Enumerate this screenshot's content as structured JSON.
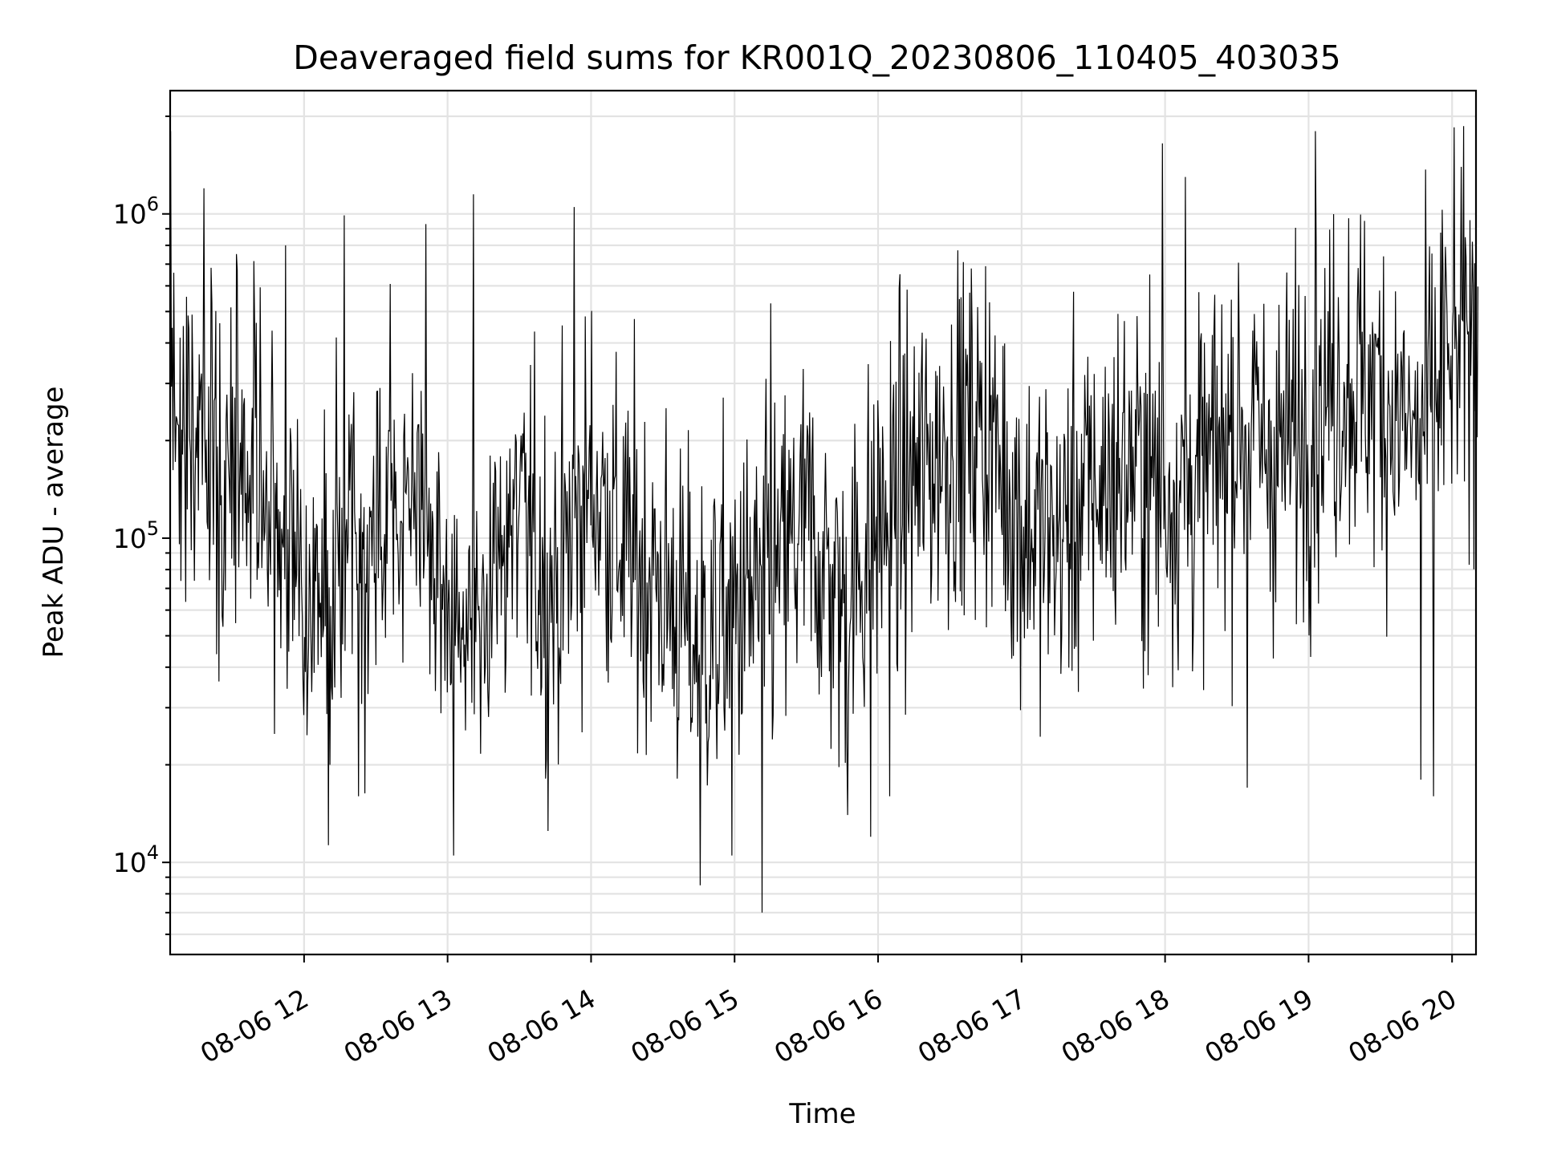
{
  "chart_data": {
    "type": "line",
    "title": "Deaveraged field sums for KR001Q_20230806_110405_403035",
    "xlabel": "Time",
    "ylabel": "Peak ADU - average",
    "yscale": "log",
    "xlim": [
      "2023-08-06 11:04",
      "2023-08-06 20:10"
    ],
    "ylim": [
      5200,
      2400000
    ],
    "grid": true,
    "x_ticks": [
      "08-06 12",
      "08-06 13",
      "08-06 14",
      "08-06 15",
      "08-06 16",
      "08-06 17",
      "08-06 18",
      "08-06 19",
      "08-06 20"
    ],
    "x_tick_hours": [
      12,
      13,
      14,
      15,
      16,
      17,
      18,
      19,
      20
    ],
    "y_ticks": [
      {
        "value": 10000,
        "base": "10",
        "exp": "4"
      },
      {
        "value": 100000,
        "base": "10",
        "exp": "5"
      },
      {
        "value": 1000000,
        "base": "10",
        "exp": "6"
      }
    ],
    "line_color": "#000000",
    "series": [
      {
        "x_hours": [
          11.07,
          11.25,
          11.5,
          11.75,
          12.0,
          12.25,
          12.5,
          12.75,
          13.0,
          13.25,
          13.5,
          13.75,
          14.0,
          14.25,
          14.5,
          14.75,
          15.0,
          15.25,
          15.5,
          15.75,
          16.0,
          16.25,
          16.5,
          16.75,
          17.0,
          17.25,
          17.5,
          17.75,
          18.0,
          18.25,
          18.5,
          18.75,
          19.0,
          19.25,
          19.5,
          19.75,
          20.0,
          20.18
        ],
        "y": [
          250000,
          200000,
          150000,
          170000,
          60000,
          70000,
          90000,
          160000,
          50000,
          70000,
          110000,
          70000,
          150000,
          90000,
          70000,
          45000,
          60000,
          70000,
          110000,
          60000,
          110000,
          150000,
          200000,
          220000,
          110000,
          100000,
          140000,
          170000,
          140000,
          150000,
          230000,
          180000,
          230000,
          320000,
          280000,
          200000,
          350000,
          450000
        ],
        "peaks_hours": [
          11.07,
          11.3,
          11.87,
          12.28,
          12.85,
          13.18,
          13.88,
          15.25,
          16.08,
          17.98,
          18.14,
          19.05,
          19.93
        ],
        "peaks_y": [
          1800000,
          1200000,
          800000,
          990000,
          930000,
          1150000,
          1050000,
          530000,
          870000,
          1650000,
          1300000,
          1800000,
          1030000
        ],
        "troughs_hours": [
          12.18,
          12.38,
          13.04,
          13.7,
          14.76,
          14.98,
          15.19,
          15.79,
          15.95,
          16.08,
          18.57,
          19.78,
          19.87
        ],
        "troughs_y": [
          20000,
          16000,
          10500,
          12500,
          8500,
          10500,
          7000,
          14000,
          12000,
          16000,
          17000,
          18000,
          16000
        ]
      }
    ]
  }
}
